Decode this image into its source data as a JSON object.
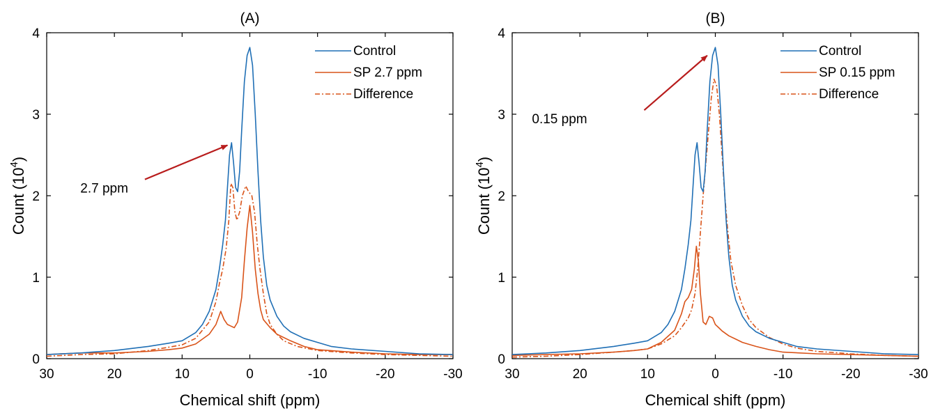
{
  "chart_data": [
    {
      "type": "line",
      "title": "(A)",
      "xlabel": "Chemical shift (ppm)",
      "ylabel_main": "Count (10",
      "ylabel_sup": "4",
      "ylabel_close": ")",
      "xlim": [
        30,
        -30
      ],
      "ylim": [
        0,
        4
      ],
      "x_ticks": [
        30,
        20,
        10,
        0,
        -10,
        -20,
        -30
      ],
      "y_ticks": [
        0,
        1,
        2,
        3,
        4
      ],
      "grid": false,
      "legend_position": "top-right",
      "colors": {
        "control": "#1f6fb5",
        "sp": "#d95319",
        "difference": "#d95319",
        "arrow": "#b81c1c"
      },
      "series": [
        {
          "name": "Control",
          "style": "solid",
          "points": [
            [
              30,
              0.05
            ],
            [
              25,
              0.07
            ],
            [
              20,
              0.1
            ],
            [
              15,
              0.15
            ],
            [
              12,
              0.19
            ],
            [
              10,
              0.22
            ],
            [
              8,
              0.32
            ],
            [
              7,
              0.42
            ],
            [
              6,
              0.58
            ],
            [
              5,
              0.85
            ],
            [
              4.5,
              1.1
            ],
            [
              4,
              1.4
            ],
            [
              3.6,
              1.7
            ],
            [
              3.3,
              2.1
            ],
            [
              3,
              2.5
            ],
            [
              2.7,
              2.65
            ],
            [
              2.4,
              2.4
            ],
            [
              2.1,
              2.1
            ],
            [
              1.8,
              2.05
            ],
            [
              1.5,
              2.3
            ],
            [
              1.2,
              2.8
            ],
            [
              0.8,
              3.4
            ],
            [
              0.4,
              3.72
            ],
            [
              0,
              3.82
            ],
            [
              -0.4,
              3.6
            ],
            [
              -0.8,
              3.0
            ],
            [
              -1.2,
              2.3
            ],
            [
              -1.6,
              1.7
            ],
            [
              -2,
              1.25
            ],
            [
              -2.5,
              0.9
            ],
            [
              -3,
              0.72
            ],
            [
              -4,
              0.52
            ],
            [
              -5,
              0.4
            ],
            [
              -6,
              0.33
            ],
            [
              -8,
              0.25
            ],
            [
              -10,
              0.2
            ],
            [
              -12,
              0.15
            ],
            [
              -15,
              0.12
            ],
            [
              -20,
              0.09
            ],
            [
              -25,
              0.06
            ],
            [
              -30,
              0.05
            ]
          ]
        },
        {
          "name": "SP 2.7 ppm",
          "style": "solid",
          "points": [
            [
              30,
              0.05
            ],
            [
              25,
              0.07
            ],
            [
              20,
              0.07
            ],
            [
              15,
              0.09
            ],
            [
              12,
              0.11
            ],
            [
              10,
              0.13
            ],
            [
              8,
              0.18
            ],
            [
              6,
              0.3
            ],
            [
              5,
              0.42
            ],
            [
              4.3,
              0.58
            ],
            [
              3.8,
              0.48
            ],
            [
              3.3,
              0.42
            ],
            [
              2.8,
              0.4
            ],
            [
              2.3,
              0.38
            ],
            [
              1.8,
              0.45
            ],
            [
              1.2,
              0.75
            ],
            [
              0.8,
              1.2
            ],
            [
              0.4,
              1.6
            ],
            [
              0,
              1.88
            ],
            [
              -0.4,
              1.55
            ],
            [
              -0.8,
              1.1
            ],
            [
              -1.2,
              0.8
            ],
            [
              -1.6,
              0.6
            ],
            [
              -2,
              0.48
            ],
            [
              -3,
              0.38
            ],
            [
              -4,
              0.3
            ],
            [
              -6,
              0.22
            ],
            [
              -8,
              0.15
            ],
            [
              -10,
              0.11
            ],
            [
              -15,
              0.08
            ],
            [
              -20,
              0.06
            ],
            [
              -25,
              0.05
            ],
            [
              -30,
              0.05
            ]
          ]
        },
        {
          "name": "Difference",
          "style": "dashdot",
          "points": [
            [
              30,
              0.03
            ],
            [
              25,
              0.05
            ],
            [
              20,
              0.06
            ],
            [
              15,
              0.1
            ],
            [
              12,
              0.14
            ],
            [
              10,
              0.17
            ],
            [
              8,
              0.25
            ],
            [
              6,
              0.45
            ],
            [
              5,
              0.7
            ],
            [
              4.5,
              0.92
            ],
            [
              4,
              1.1
            ],
            [
              3.5,
              1.35
            ],
            [
              3.1,
              1.7
            ],
            [
              2.8,
              2.15
            ],
            [
              2.5,
              2.1
            ],
            [
              2.2,
              1.8
            ],
            [
              1.9,
              1.7
            ],
            [
              1.5,
              1.8
            ],
            [
              1.1,
              2.0
            ],
            [
              0.6,
              2.12
            ],
            [
              0.2,
              2.05
            ],
            [
              -0.3,
              2.0
            ],
            [
              -0.7,
              1.8
            ],
            [
              -1.1,
              1.4
            ],
            [
              -1.5,
              1.1
            ],
            [
              -2,
              0.8
            ],
            [
              -2.5,
              0.55
            ],
            [
              -3,
              0.42
            ],
            [
              -4,
              0.3
            ],
            [
              -5,
              0.22
            ],
            [
              -7,
              0.15
            ],
            [
              -10,
              0.1
            ],
            [
              -15,
              0.07
            ],
            [
              -20,
              0.05
            ],
            [
              -25,
              0.04
            ],
            [
              -30,
              0.03
            ]
          ]
        }
      ],
      "annotations": [
        {
          "text": "2.7 ppm",
          "label_x": 21.5,
          "label_y": 2.1,
          "arrow_from": [
            15.5,
            2.2
          ],
          "arrow_to": [
            3.3,
            2.62
          ]
        }
      ]
    },
    {
      "type": "line",
      "title": "(B)",
      "xlabel": "Chemical shift (ppm)",
      "ylabel_main": "Count (10",
      "ylabel_sup": "4",
      "ylabel_close": ")",
      "xlim": [
        30,
        -30
      ],
      "ylim": [
        0,
        4
      ],
      "x_ticks": [
        30,
        20,
        10,
        0,
        -10,
        -20,
        -30
      ],
      "y_ticks": [
        0,
        1,
        2,
        3,
        4
      ],
      "grid": false,
      "legend_position": "top-right",
      "colors": {
        "control": "#1f6fb5",
        "sp": "#d95319",
        "difference": "#d95319",
        "arrow": "#b81c1c"
      },
      "series": [
        {
          "name": "Control",
          "style": "solid",
          "points": [
            [
              30,
              0.05
            ],
            [
              25,
              0.07
            ],
            [
              20,
              0.1
            ],
            [
              15,
              0.15
            ],
            [
              12,
              0.19
            ],
            [
              10,
              0.22
            ],
            [
              8,
              0.32
            ],
            [
              7,
              0.42
            ],
            [
              6,
              0.58
            ],
            [
              5,
              0.85
            ],
            [
              4.5,
              1.1
            ],
            [
              4,
              1.4
            ],
            [
              3.6,
              1.7
            ],
            [
              3.3,
              2.1
            ],
            [
              3,
              2.5
            ],
            [
              2.7,
              2.65
            ],
            [
              2.4,
              2.4
            ],
            [
              2.1,
              2.1
            ],
            [
              1.8,
              2.05
            ],
            [
              1.5,
              2.3
            ],
            [
              1.2,
              2.8
            ],
            [
              0.8,
              3.4
            ],
            [
              0.4,
              3.72
            ],
            [
              0,
              3.82
            ],
            [
              -0.4,
              3.6
            ],
            [
              -0.8,
              3.0
            ],
            [
              -1.2,
              2.3
            ],
            [
              -1.6,
              1.7
            ],
            [
              -2,
              1.25
            ],
            [
              -2.5,
              0.9
            ],
            [
              -3,
              0.72
            ],
            [
              -4,
              0.52
            ],
            [
              -5,
              0.4
            ],
            [
              -6,
              0.33
            ],
            [
              -8,
              0.25
            ],
            [
              -10,
              0.2
            ],
            [
              -12,
              0.15
            ],
            [
              -15,
              0.12
            ],
            [
              -20,
              0.09
            ],
            [
              -25,
              0.06
            ],
            [
              -30,
              0.05
            ]
          ]
        },
        {
          "name": "SP 0.15 ppm",
          "style": "solid",
          "points": [
            [
              30,
              0.04
            ],
            [
              25,
              0.05
            ],
            [
              20,
              0.06
            ],
            [
              15,
              0.08
            ],
            [
              12,
              0.1
            ],
            [
              10,
              0.12
            ],
            [
              8,
              0.2
            ],
            [
              6,
              0.35
            ],
            [
              5,
              0.55
            ],
            [
              4.5,
              0.7
            ],
            [
              4,
              0.75
            ],
            [
              3.5,
              0.85
            ],
            [
              3.1,
              1.1
            ],
            [
              2.8,
              1.38
            ],
            [
              2.5,
              1.2
            ],
            [
              2.2,
              0.8
            ],
            [
              1.8,
              0.45
            ],
            [
              1.4,
              0.42
            ],
            [
              0.9,
              0.52
            ],
            [
              0.4,
              0.5
            ],
            [
              0,
              0.42
            ],
            [
              -0.5,
              0.38
            ],
            [
              -1,
              0.34
            ],
            [
              -2,
              0.28
            ],
            [
              -3,
              0.24
            ],
            [
              -4,
              0.2
            ],
            [
              -6,
              0.15
            ],
            [
              -8,
              0.11
            ],
            [
              -10,
              0.08
            ],
            [
              -15,
              0.06
            ],
            [
              -20,
              0.05
            ],
            [
              -25,
              0.04
            ],
            [
              -30,
              0.03
            ]
          ]
        },
        {
          "name": "Difference",
          "style": "dashdot",
          "points": [
            [
              30,
              0.02
            ],
            [
              25,
              0.03
            ],
            [
              20,
              0.05
            ],
            [
              15,
              0.08
            ],
            [
              12,
              0.1
            ],
            [
              10,
              0.12
            ],
            [
              8,
              0.18
            ],
            [
              6,
              0.28
            ],
            [
              5,
              0.38
            ],
            [
              4,
              0.5
            ],
            [
              3.5,
              0.6
            ],
            [
              3,
              0.8
            ],
            [
              2.6,
              1.1
            ],
            [
              2.2,
              1.55
            ],
            [
              1.8,
              2.0
            ],
            [
              1.4,
              2.4
            ],
            [
              1,
              2.8
            ],
            [
              0.6,
              3.2
            ],
            [
              0.2,
              3.43
            ],
            [
              -0.2,
              3.35
            ],
            [
              -0.6,
              3.0
            ],
            [
              -1,
              2.5
            ],
            [
              -1.4,
              2.0
            ],
            [
              -1.8,
              1.6
            ],
            [
              -2.3,
              1.2
            ],
            [
              -3,
              0.9
            ],
            [
              -4,
              0.65
            ],
            [
              -5,
              0.48
            ],
            [
              -6,
              0.38
            ],
            [
              -8,
              0.26
            ],
            [
              -10,
              0.18
            ],
            [
              -12,
              0.13
            ],
            [
              -15,
              0.09
            ],
            [
              -20,
              0.06
            ],
            [
              -25,
              0.04
            ],
            [
              -30,
              0.03
            ]
          ]
        }
      ],
      "annotations": [
        {
          "text": "0.15 ppm",
          "label_x": 23,
          "label_y": 2.95,
          "arrow_from": [
            10.5,
            3.05
          ],
          "arrow_to": [
            1.2,
            3.72
          ]
        }
      ]
    }
  ]
}
